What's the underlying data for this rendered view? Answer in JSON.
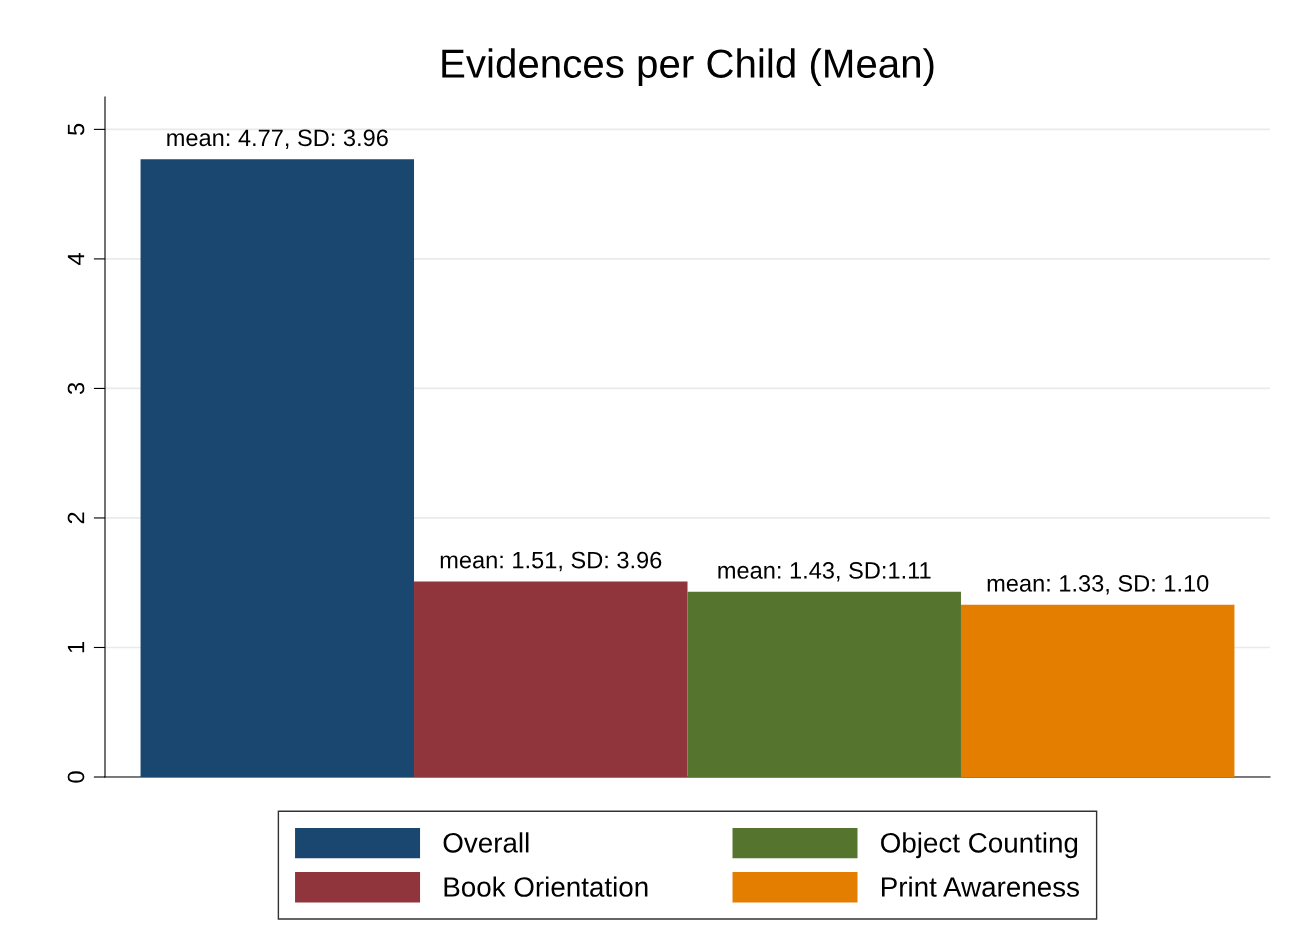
{
  "chart_data": {
    "type": "bar",
    "title": "Evidences per Child (Mean)",
    "categories": [
      null,
      null,
      null,
      null
    ],
    "series": [
      {
        "name": "Overall",
        "color": "#1a476f",
        "values": [
          4.77,
          null,
          null,
          null
        ],
        "value_labels": [
          "mean: 4.77, SD: 3.96",
          null,
          null,
          null
        ]
      },
      {
        "name": "Book Orientation",
        "color": "#90353b",
        "values": [
          null,
          1.51,
          null,
          null
        ],
        "value_labels": [
          null,
          "mean: 1.51, SD: 3.96",
          null,
          null
        ]
      },
      {
        "name": "Object Counting",
        "color": "#55752f",
        "values": [
          null,
          null,
          1.43,
          null
        ],
        "value_labels": [
          null,
          null,
          "mean: 1.43, SD:1.11",
          null
        ]
      },
      {
        "name": "Print Awareness",
        "color": "#e37e00",
        "values": [
          null,
          null,
          null,
          1.33
        ],
        "value_labels": [
          null,
          null,
          null,
          "mean: 1.33, SD: 1.10"
        ]
      }
    ],
    "ylim": [
      0,
      5.25
    ],
    "yticks": [
      0,
      1,
      2,
      3,
      4,
      5
    ],
    "grid": "y",
    "legend": "bottom"
  }
}
